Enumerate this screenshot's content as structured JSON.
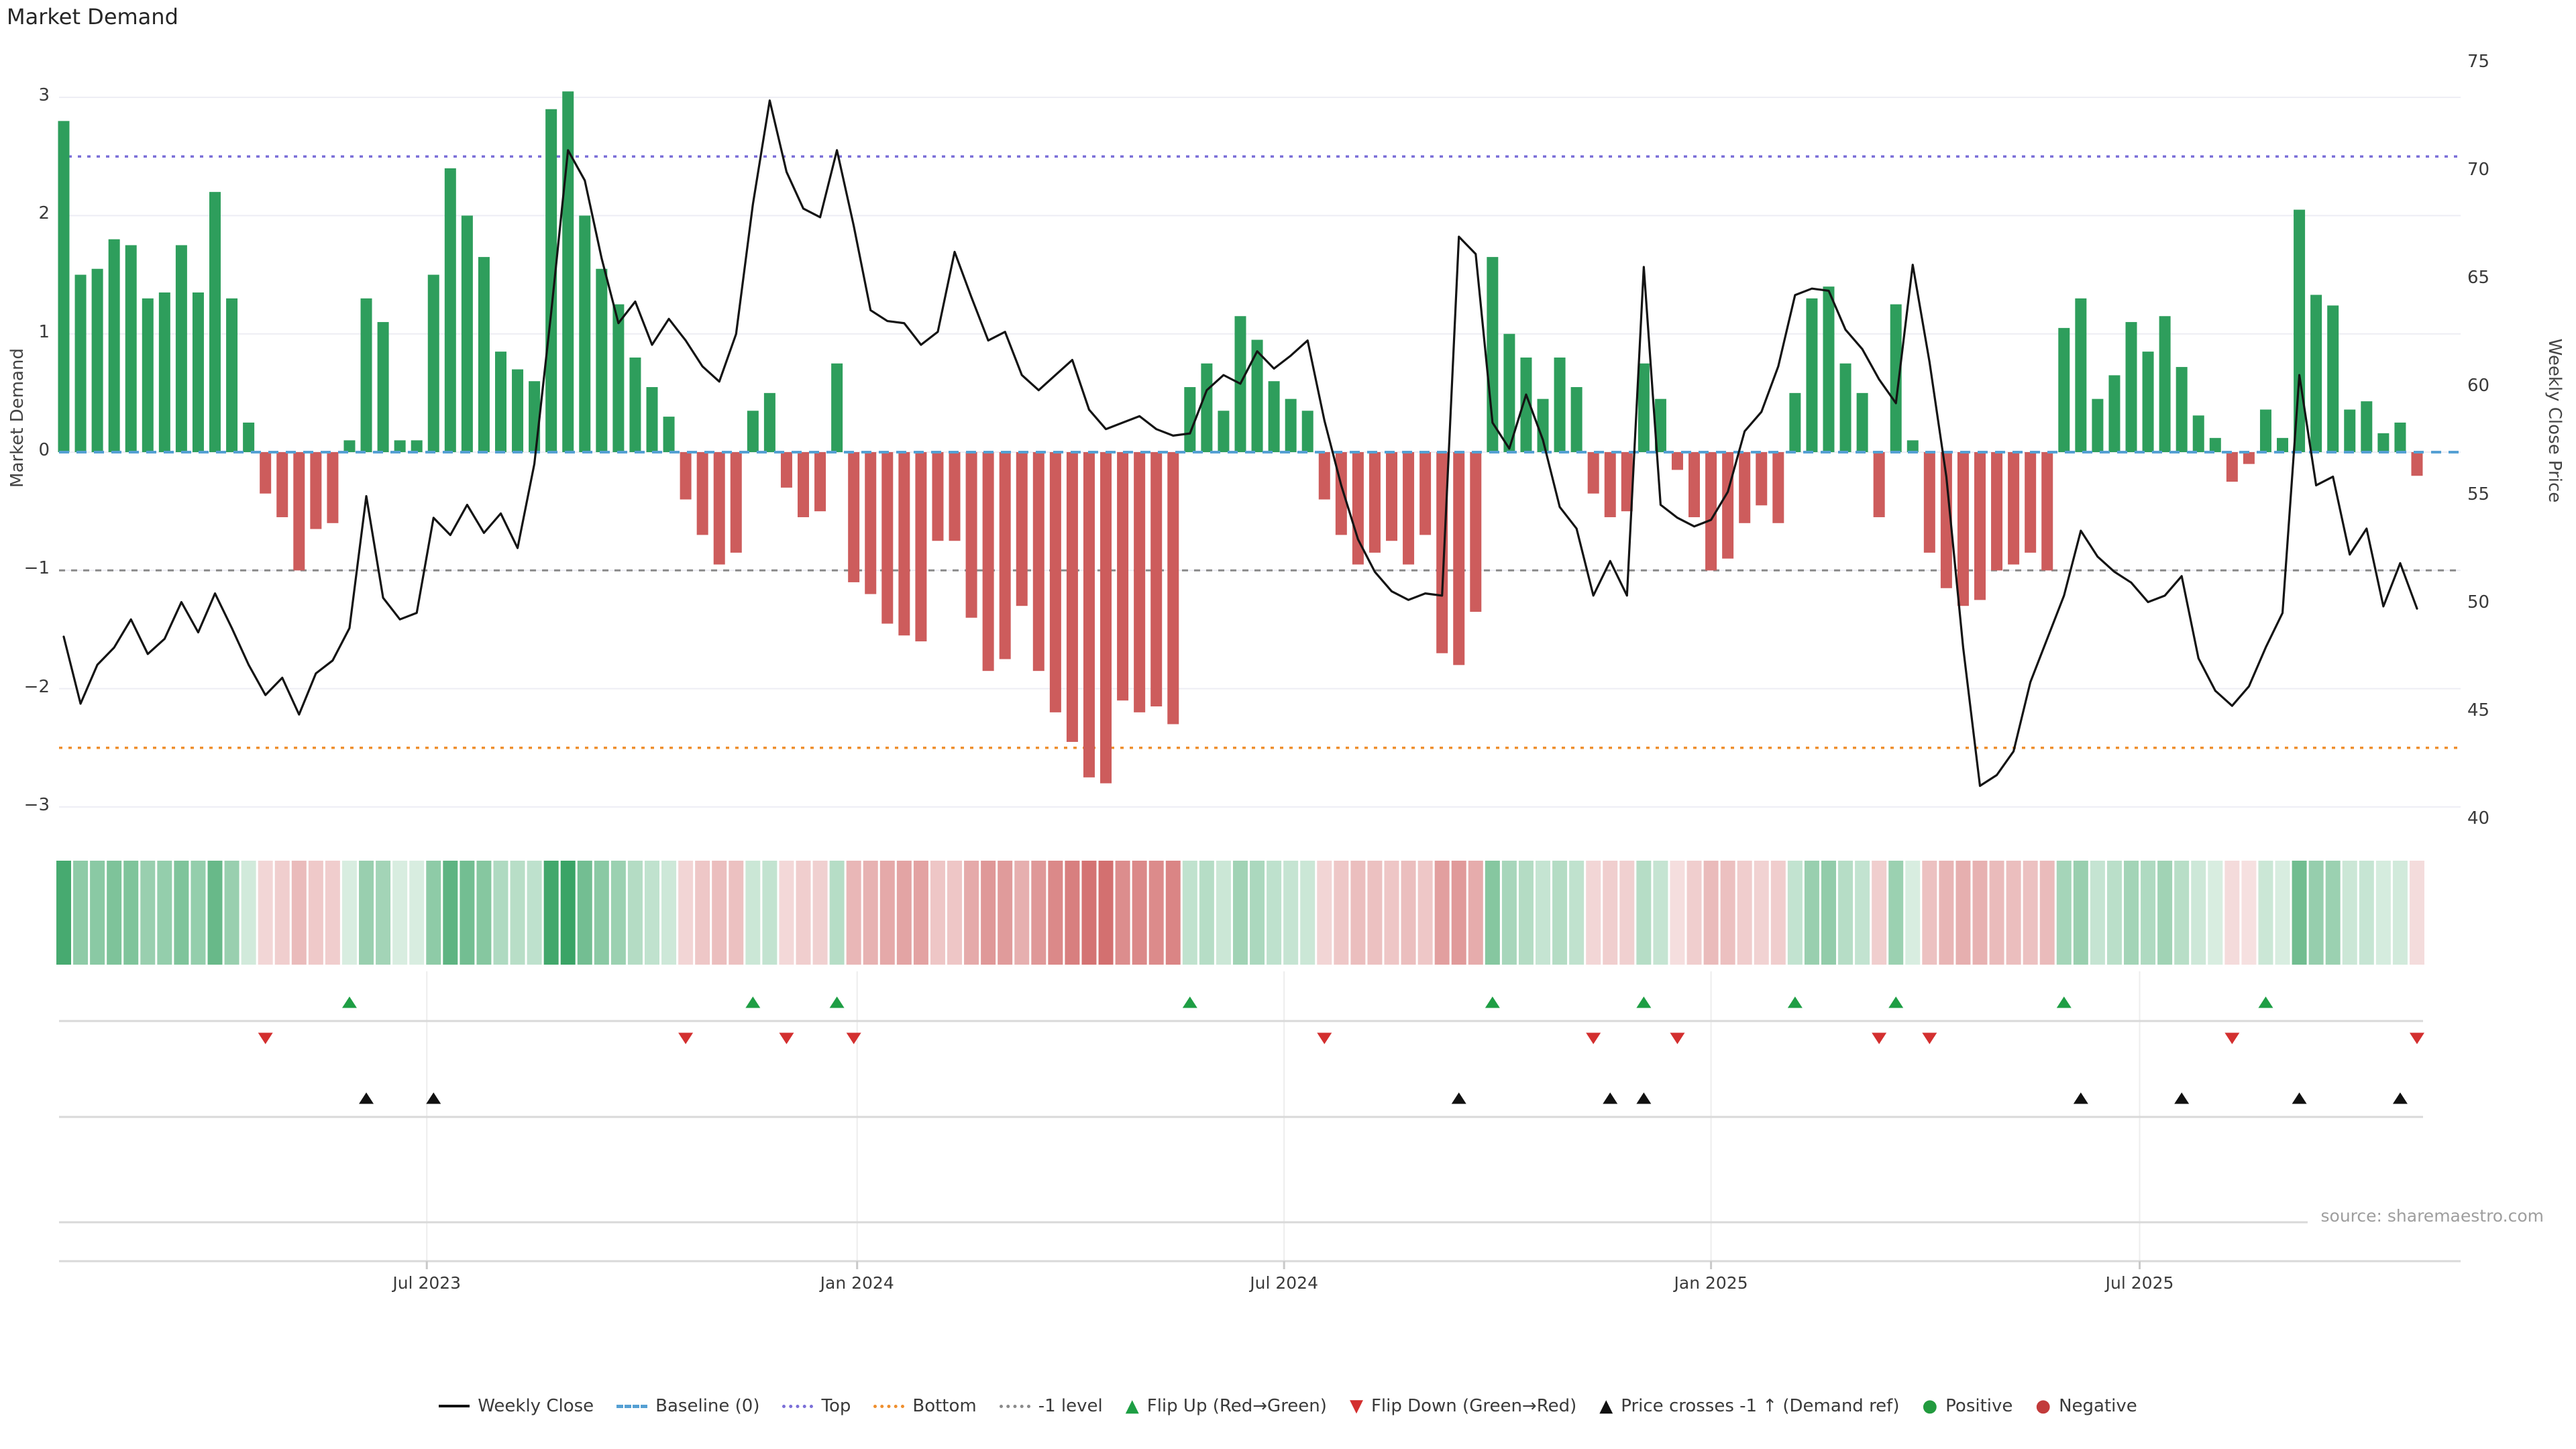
{
  "title": "Market Demand",
  "source": "source: sharemaestro.com",
  "axes": {
    "left_label": "Market Demand",
    "right_label": "Weekly Close Price",
    "left_ticks": [
      3,
      2,
      1,
      0,
      -1,
      -2,
      -3
    ],
    "right_ticks": [
      75,
      70,
      65,
      60,
      55,
      50,
      45,
      40
    ],
    "x_ticks": [
      {
        "label": "Jul 2023",
        "week": 21.6
      },
      {
        "label": "Jan 2024",
        "week": 47.2
      },
      {
        "label": "Jul 2024",
        "week": 72.6
      },
      {
        "label": "Jan 2025",
        "week": 98.0
      },
      {
        "label": "Jul 2025",
        "week": 123.5
      }
    ]
  },
  "colors": {
    "bar_positive": "#2e9e5c",
    "bar_negative": "#cd5c5c",
    "price_line": "#141414",
    "baseline": "#55a0d3",
    "top_line": "#7b6fd8",
    "bottom_line": "#ef8f2e",
    "minus1_line": "#8a8a8a",
    "grid": "#ededf4",
    "divider": "#d9d9d9",
    "heat_green": "46,158,92",
    "heat_red": "205,92,92",
    "marker_up": "#1e9e44",
    "marker_down": "#d32f2f",
    "marker_cross": "#111111"
  },
  "legend": [
    {
      "label": "Weekly Close",
      "icon": "line-solid-icon",
      "color": "#111111"
    },
    {
      "label": "Baseline (0)",
      "icon": "line-dashed-icon",
      "color": "#55a0d3"
    },
    {
      "label": "Top",
      "icon": "line-dotted-icon",
      "color": "#7b6fd8"
    },
    {
      "label": "Bottom",
      "icon": "line-dotted-icon",
      "color": "#ef8f2e"
    },
    {
      "label": "-1 level",
      "icon": "line-dotted-icon",
      "color": "#8a8a8a"
    },
    {
      "label": "Flip Up (Red→Green)",
      "icon": "triangle-up-icon",
      "color": "#1e9e44"
    },
    {
      "label": "Flip Down (Green→Red)",
      "icon": "triangle-down-icon",
      "color": "#d32f2f"
    },
    {
      "label": "Price crosses -1 ↑ (Demand ref)",
      "icon": "triangle-up-icon",
      "color": "#111111"
    },
    {
      "label": "Positive",
      "icon": "circle-icon",
      "color": "#229a3e"
    },
    {
      "label": "Negative",
      "icon": "circle-icon",
      "color": "#c23b3b"
    }
  ],
  "chart_data": {
    "type": "bar",
    "weeks": 141,
    "title": "Market Demand",
    "ylabel_left": "Market Demand",
    "ylabel_right": "Weekly Close Price",
    "ylim_left": [
      -3.3,
      3.3
    ],
    "ylim_right": [
      39,
      76
    ],
    "grid": true,
    "legend_position": "bottom-center",
    "reference_lines": {
      "baseline": 0,
      "top": 2.5,
      "bottom": -2.5,
      "minus1_level": -1
    },
    "series": [
      {
        "name": "Market Demand",
        "type": "bar",
        "values": [
          2.8,
          1.5,
          1.55,
          1.8,
          1.75,
          1.3,
          1.35,
          1.75,
          1.35,
          2.2,
          1.3,
          0.25,
          -0.35,
          -0.55,
          -1.0,
          -0.65,
          -0.6,
          0.1,
          1.3,
          1.1,
          0.1,
          0.1,
          1.5,
          2.4,
          2.0,
          1.65,
          0.85,
          0.7,
          0.6,
          2.9,
          3.05,
          2.0,
          1.55,
          1.25,
          0.8,
          0.55,
          0.3,
          -0.4,
          -0.7,
          -0.95,
          -0.85,
          0.35,
          0.5,
          -0.3,
          -0.55,
          -0.5,
          0.75,
          -1.1,
          -1.2,
          -1.45,
          -1.55,
          -1.6,
          -0.75,
          -0.75,
          -1.4,
          -1.85,
          -1.75,
          -1.3,
          -1.85,
          -2.2,
          -2.45,
          -2.75,
          -2.8,
          -2.1,
          -2.2,
          -2.15,
          -2.3,
          0.55,
          0.75,
          0.35,
          1.15,
          0.95,
          0.6,
          0.45,
          0.35,
          -0.4,
          -0.7,
          -0.95,
          -0.85,
          -0.75,
          -0.95,
          -0.7,
          -1.7,
          -1.8,
          -1.35,
          1.65,
          1.0,
          0.8,
          0.45,
          0.8,
          0.55,
          -0.35,
          -0.55,
          -0.5,
          0.75,
          0.45,
          -0.15,
          -0.55,
          -1.0,
          -0.9,
          -0.6,
          -0.45,
          -0.6,
          0.5,
          1.3,
          1.4,
          0.75,
          0.5,
          -0.55,
          1.25,
          0.1,
          -0.85,
          -1.15,
          -1.3,
          -1.25,
          -1.0,
          -0.95,
          -0.85,
          -1.0,
          1.05,
          1.3,
          0.45,
          0.65,
          1.1,
          0.85,
          1.15,
          0.72,
          0.31,
          0.12,
          -0.25,
          -0.1,
          0.36,
          0.12,
          2.05,
          1.33,
          1.24,
          0.36,
          0.43,
          0.16,
          0.25,
          -0.2
        ]
      },
      {
        "name": "Weekly Close",
        "type": "line",
        "values": [
          48.5,
          45.4,
          47.2,
          48.0,
          49.3,
          47.7,
          48.4,
          50.1,
          48.7,
          50.5,
          48.9,
          47.2,
          45.8,
          46.6,
          44.9,
          46.8,
          47.4,
          48.9,
          55.0,
          50.3,
          49.3,
          49.6,
          54.0,
          53.2,
          54.6,
          53.3,
          54.2,
          52.6,
          56.5,
          63.5,
          71.0,
          69.6,
          66.0,
          63.0,
          64.0,
          62.0,
          63.2,
          62.2,
          61.0,
          60.3,
          62.5,
          68.5,
          73.3,
          70.0,
          68.3,
          67.9,
          71.0,
          67.5,
          63.6,
          63.1,
          63.0,
          62.0,
          62.6,
          66.3,
          64.2,
          62.2,
          62.6,
          60.6,
          59.9,
          60.6,
          61.3,
          59.0,
          58.1,
          58.4,
          58.7,
          58.1,
          57.8,
          57.9,
          59.9,
          60.6,
          60.2,
          61.7,
          60.9,
          61.5,
          62.2,
          58.5,
          55.5,
          53.0,
          51.5,
          50.6,
          50.2,
          50.5,
          50.4,
          67.0,
          66.2,
          58.4,
          57.2,
          59.7,
          57.6,
          54.5,
          53.5,
          50.4,
          52.0,
          50.4,
          65.6,
          54.6,
          54.0,
          53.6,
          53.9,
          55.2,
          58.0,
          58.9,
          61.0,
          64.3,
          64.6,
          64.5,
          62.7,
          61.8,
          60.4,
          59.3,
          65.7,
          61.2,
          55.9,
          48.0,
          41.6,
          42.1,
          43.2,
          46.4,
          48.4,
          50.4,
          53.4,
          52.2,
          51.5,
          51.0,
          50.1,
          50.4,
          51.3,
          47.5,
          46.0,
          45.3,
          46.2,
          48.0,
          49.6,
          60.6,
          55.5,
          55.9,
          52.3,
          53.5,
          49.9,
          51.9,
          49.8
        ]
      }
    ],
    "markers": {
      "flip_up_weeks": [
        17,
        41,
        46,
        67,
        85,
        94,
        103,
        109,
        119,
        131
      ],
      "flip_down_weeks": [
        12,
        37,
        43,
        47,
        75,
        91,
        96,
        108,
        111,
        129,
        140
      ],
      "price_cross_weeks": [
        18,
        22,
        83,
        92,
        94,
        120,
        126,
        133,
        139
      ]
    },
    "heatmap": "signed intensity of Market Demand values"
  }
}
